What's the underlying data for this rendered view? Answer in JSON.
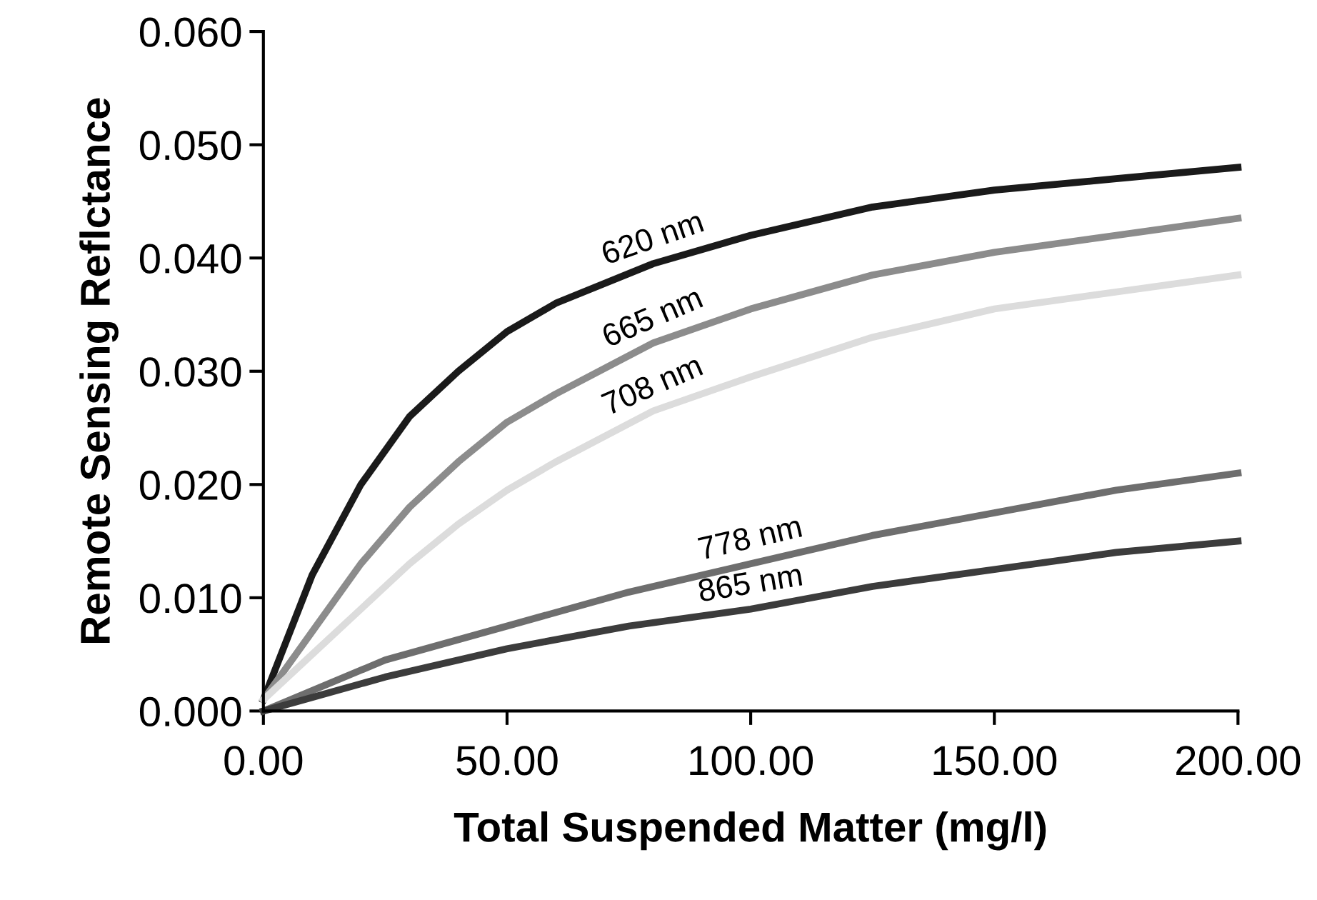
{
  "chart_data": {
    "type": "line",
    "xlabel": "Total Suspended Matter (mg/l)",
    "ylabel": "Remote Sensing Reflctance",
    "xlim": [
      0,
      200
    ],
    "ylim": [
      0,
      0.06
    ],
    "xticks": [
      {
        "value": 0,
        "label": "0.00"
      },
      {
        "value": 50,
        "label": "50.00"
      },
      {
        "value": 100,
        "label": "100.00"
      },
      {
        "value": 150,
        "label": "150.00"
      },
      {
        "value": 200,
        "label": "200.00"
      }
    ],
    "yticks": [
      {
        "value": 0,
        "label": "0.000"
      },
      {
        "value": 0.01,
        "label": "0.010"
      },
      {
        "value": 0.02,
        "label": "0.020"
      },
      {
        "value": 0.03,
        "label": "0.030"
      },
      {
        "value": 0.04,
        "label": "0.040"
      },
      {
        "value": 0.05,
        "label": "0.050"
      },
      {
        "value": 0.06,
        "label": "0.060"
      }
    ],
    "grid": false,
    "legend": false,
    "marker": "none",
    "line_style": "solid",
    "series": [
      {
        "name": "620 nm",
        "color": "#1a1a1a",
        "x": [
          0,
          10,
          20,
          30,
          40,
          50,
          60,
          80,
          100,
          125,
          150,
          175,
          200
        ],
        "values": [
          0.001,
          0.012,
          0.02,
          0.026,
          0.03,
          0.0335,
          0.036,
          0.0395,
          0.042,
          0.0445,
          0.046,
          0.047,
          0.048
        ]
      },
      {
        "name": "665 nm",
        "color": "#8c8c8c",
        "x": [
          0,
          10,
          20,
          30,
          40,
          50,
          60,
          80,
          100,
          125,
          150,
          175,
          200
        ],
        "values": [
          0.001,
          0.007,
          0.013,
          0.018,
          0.022,
          0.0255,
          0.028,
          0.0325,
          0.0355,
          0.0385,
          0.0405,
          0.042,
          0.0435
        ]
      },
      {
        "name": "708 nm",
        "color": "#dcdcdc",
        "x": [
          0,
          10,
          20,
          30,
          40,
          50,
          60,
          80,
          100,
          125,
          150,
          175,
          200
        ],
        "values": [
          0.001,
          0.005,
          0.009,
          0.013,
          0.0165,
          0.0195,
          0.022,
          0.0265,
          0.0295,
          0.033,
          0.0355,
          0.037,
          0.0385
        ]
      },
      {
        "name": "778 nm",
        "color": "#6e6e6e",
        "x": [
          0,
          25,
          50,
          75,
          100,
          125,
          150,
          175,
          200
        ],
        "values": [
          0,
          0.0045,
          0.0075,
          0.0105,
          0.013,
          0.0155,
          0.0175,
          0.0195,
          0.021
        ]
      },
      {
        "name": "865 nm",
        "color": "#3c3c3c",
        "x": [
          0,
          25,
          50,
          75,
          100,
          125,
          150,
          175,
          200
        ],
        "values": [
          0,
          0.003,
          0.0055,
          0.0075,
          0.009,
          0.011,
          0.0125,
          0.014,
          0.015
        ]
      }
    ]
  }
}
